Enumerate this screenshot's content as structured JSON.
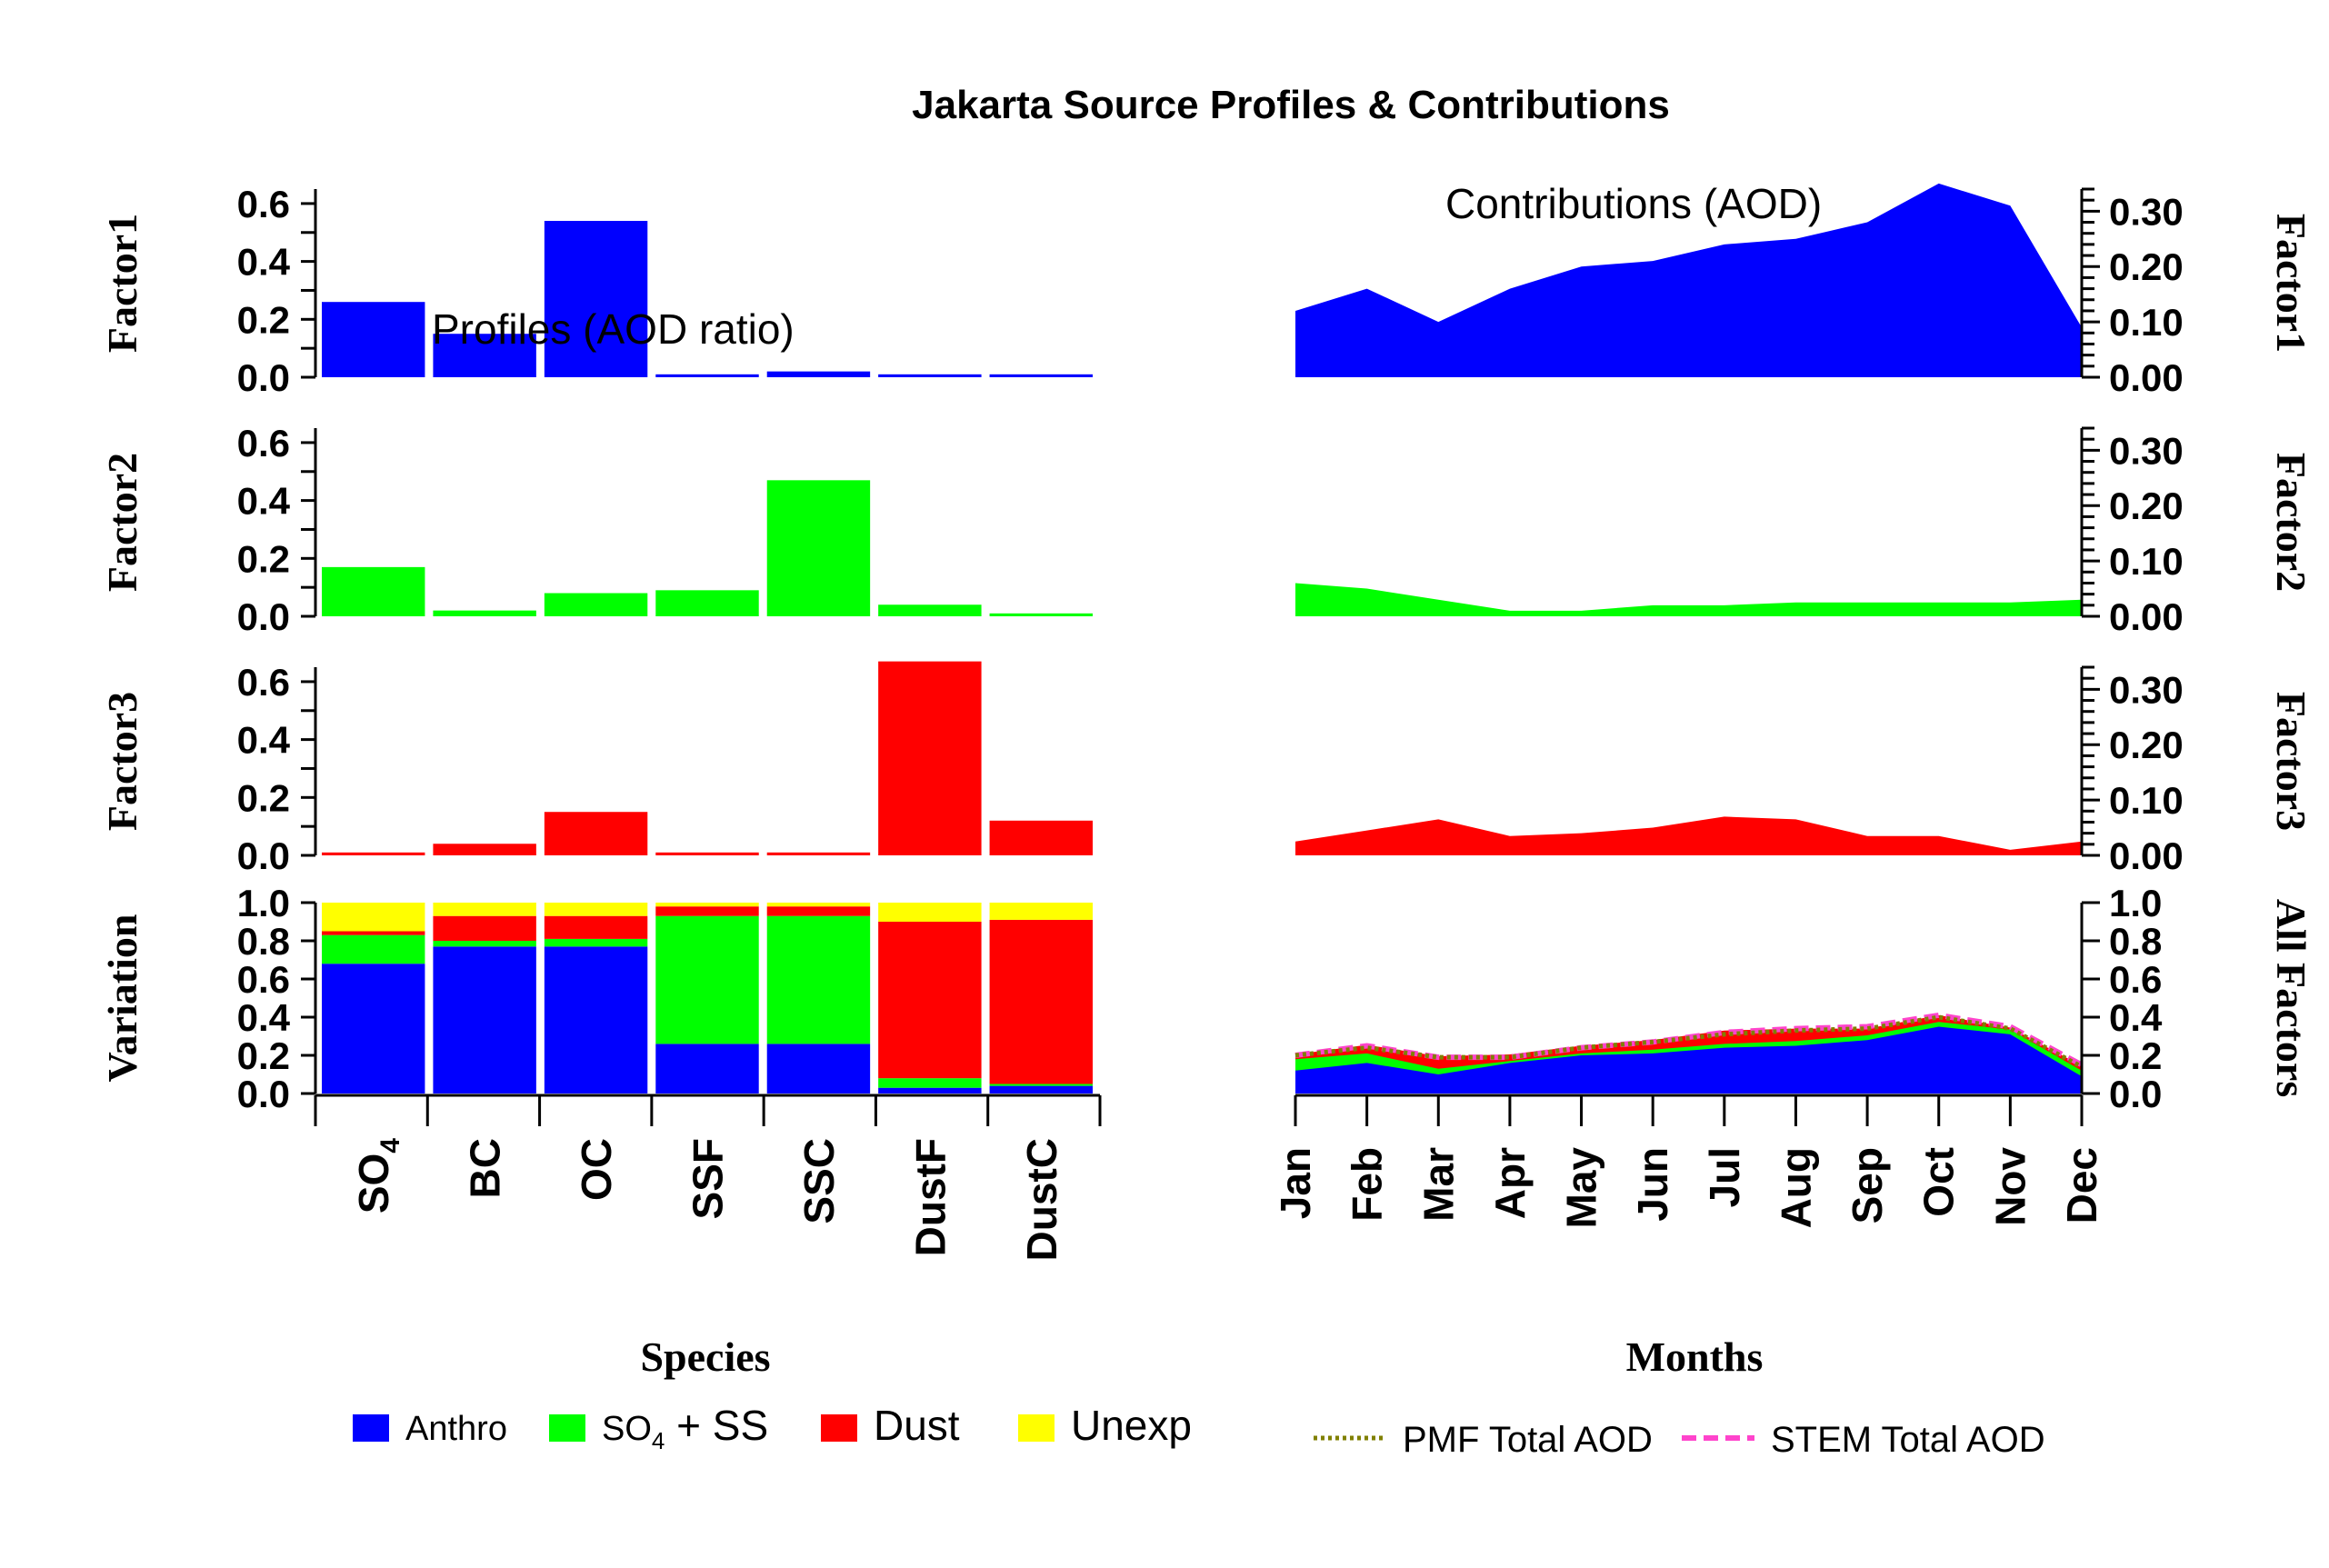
{
  "chart_data": {
    "type": "bar",
    "title": "Jakarta Source Profiles & Contributions",
    "profiles": {
      "annotation": "Profiles (AOD ratio)",
      "xlabel": "Species",
      "species_tick_labels": [
        "SO4",
        "BC",
        "OC",
        "SSF",
        "SSC",
        "DustF",
        "DustC"
      ],
      "ylim": [
        0,
        0.65
      ],
      "yticks": [
        "0.0",
        "0.2",
        "0.4",
        "0.6"
      ],
      "factors": [
        {
          "name": "Factor1",
          "color": "#0000ff",
          "values": [
            0.26,
            0.15,
            0.54,
            0.01,
            0.02,
            0.01,
            0.01
          ]
        },
        {
          "name": "Factor2",
          "color": "#00ff00",
          "values": [
            0.17,
            0.02,
            0.08,
            0.09,
            0.47,
            0.04,
            0.01
          ]
        },
        {
          "name": "Factor3",
          "color": "#ff0000",
          "values": [
            0.01,
            0.04,
            0.15,
            0.01,
            0.01,
            0.67,
            0.12
          ]
        }
      ]
    },
    "variation": {
      "ylabel": "Variation",
      "ylim": [
        0,
        1
      ],
      "yticks": [
        "0.0",
        "0.2",
        "0.4",
        "0.6",
        "0.8",
        "1.0"
      ],
      "series": [
        {
          "name": "Anthro",
          "color": "#0000ff",
          "values": [
            0.68,
            0.77,
            0.77,
            0.26,
            0.26,
            0.03,
            0.04
          ]
        },
        {
          "name": "SO4 + SS",
          "color": "#00ff00",
          "values": [
            0.15,
            0.03,
            0.04,
            0.67,
            0.67,
            0.05,
            0.01
          ]
        },
        {
          "name": "Dust",
          "color": "#ff0000",
          "values": [
            0.02,
            0.13,
            0.12,
            0.05,
            0.05,
            0.82,
            0.86
          ]
        },
        {
          "name": "Unexp",
          "color": "#ffff00",
          "values": [
            0.15,
            0.07,
            0.07,
            0.02,
            0.02,
            0.1,
            0.09
          ]
        }
      ]
    },
    "contributions": {
      "annotation": "Contributions (AOD)",
      "xlabel": "Months",
      "months": [
        "Jan",
        "Feb",
        "Mar",
        "Apr",
        "May",
        "Jun",
        "Jul",
        "Aug",
        "Sep",
        "Oct",
        "Nov",
        "Dec"
      ],
      "ylim": [
        0,
        0.34
      ],
      "yticks": [
        "0.00",
        "0.10",
        "0.20",
        "0.30"
      ],
      "factors": [
        {
          "name": "Factor1",
          "color": "#0000ff",
          "values": [
            0.12,
            0.16,
            0.1,
            0.16,
            0.2,
            0.21,
            0.24,
            0.25,
            0.28,
            0.35,
            0.31,
            0.09
          ]
        },
        {
          "name": "Factor2",
          "color": "#00ff00",
          "values": [
            0.06,
            0.05,
            0.03,
            0.01,
            0.01,
            0.02,
            0.02,
            0.025,
            0.025,
            0.025,
            0.025,
            0.03
          ]
        },
        {
          "name": "Factor3",
          "color": "#ff0000",
          "values": [
            0.025,
            0.045,
            0.065,
            0.035,
            0.04,
            0.05,
            0.07,
            0.065,
            0.035,
            0.035,
            0.01,
            0.025
          ]
        }
      ]
    },
    "all_factors": {
      "label": "All Factors",
      "ylim": [
        0,
        1
      ],
      "yticks": [
        "0.0",
        "0.2",
        "0.4",
        "0.6",
        "0.8",
        "1.0"
      ],
      "pmf_total": [
        0.2,
        0.24,
        0.19,
        0.19,
        0.24,
        0.27,
        0.31,
        0.33,
        0.34,
        0.4,
        0.34,
        0.14
      ],
      "stem_total": [
        0.2,
        0.25,
        0.19,
        0.19,
        0.24,
        0.27,
        0.32,
        0.34,
        0.35,
        0.41,
        0.35,
        0.15
      ]
    },
    "legend_profiles": [
      {
        "label": "Anthro",
        "color": "#0000ff"
      },
      {
        "label_main": "SO",
        "label_sub": "4",
        "label_rest": " + SS",
        "color": "#00ff00"
      },
      {
        "label": "Dust",
        "color": "#ff0000"
      },
      {
        "label": "Unexp",
        "color": "#ffff00"
      }
    ],
    "legend_lines": [
      {
        "label": "PMF Total AOD",
        "color": "#808000",
        "dash": "dotted"
      },
      {
        "label": "STEM Total AOD",
        "color": "#ff44cc",
        "dash": "dashed"
      }
    ]
  }
}
